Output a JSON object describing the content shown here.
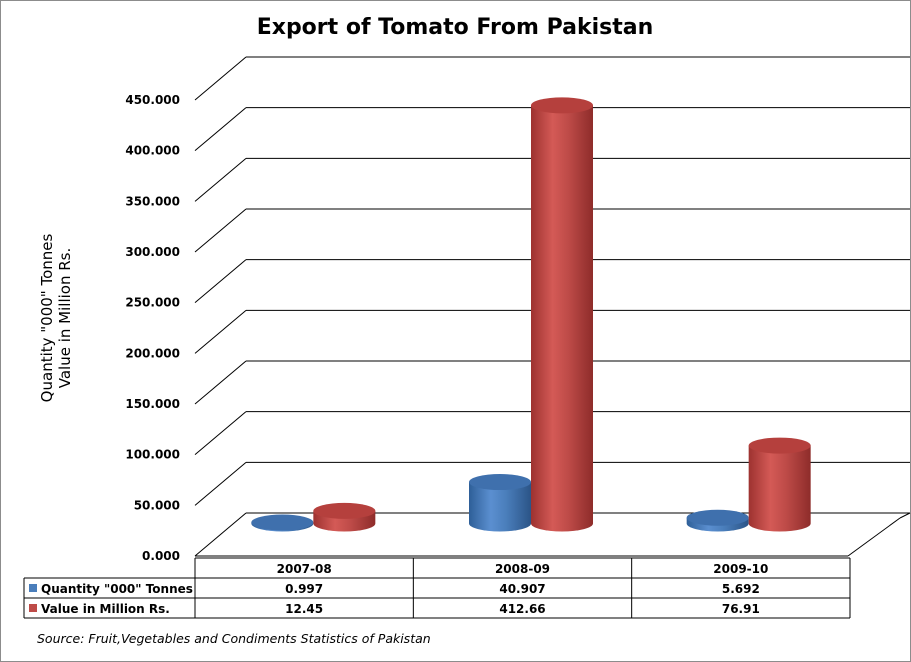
{
  "chart_data": {
    "type": "bar",
    "title": "Export of Tomato From Pakistan",
    "ylabel_lines": [
      "Quantity \"000\" Tonnes",
      "Value in Million Rs."
    ],
    "categories": [
      "2007-08",
      "2008-09",
      "2009-10"
    ],
    "series": [
      {
        "name": "Quantity \"000\" Tonnes",
        "values": [
          0.997,
          40.907,
          5.692
        ],
        "table_values": [
          "0.997",
          "40.907",
          "5.692"
        ],
        "color": "#4a7ebb"
      },
      {
        "name": "Value in Million Rs.",
        "values": [
          12.45,
          412.66,
          76.91
        ],
        "table_values": [
          "12.45",
          "412.66",
          "76.91"
        ],
        "color": "#be4b48"
      }
    ],
    "ylim": [
      0,
      450
    ],
    "yticks": [
      0,
      50,
      100,
      150,
      200,
      250,
      300,
      350,
      400,
      450
    ],
    "ytick_labels": [
      "0.000",
      "50.000",
      "100.000",
      "150.000",
      "200.000",
      "250.000",
      "300.000",
      "350.000",
      "400.000",
      "450.000"
    ],
    "grid": true,
    "legend": "data-table",
    "style": "3d-cylinder",
    "source_note": "Source: Fruit,Vegetables and Condiments Statistics of Pakistan"
  }
}
